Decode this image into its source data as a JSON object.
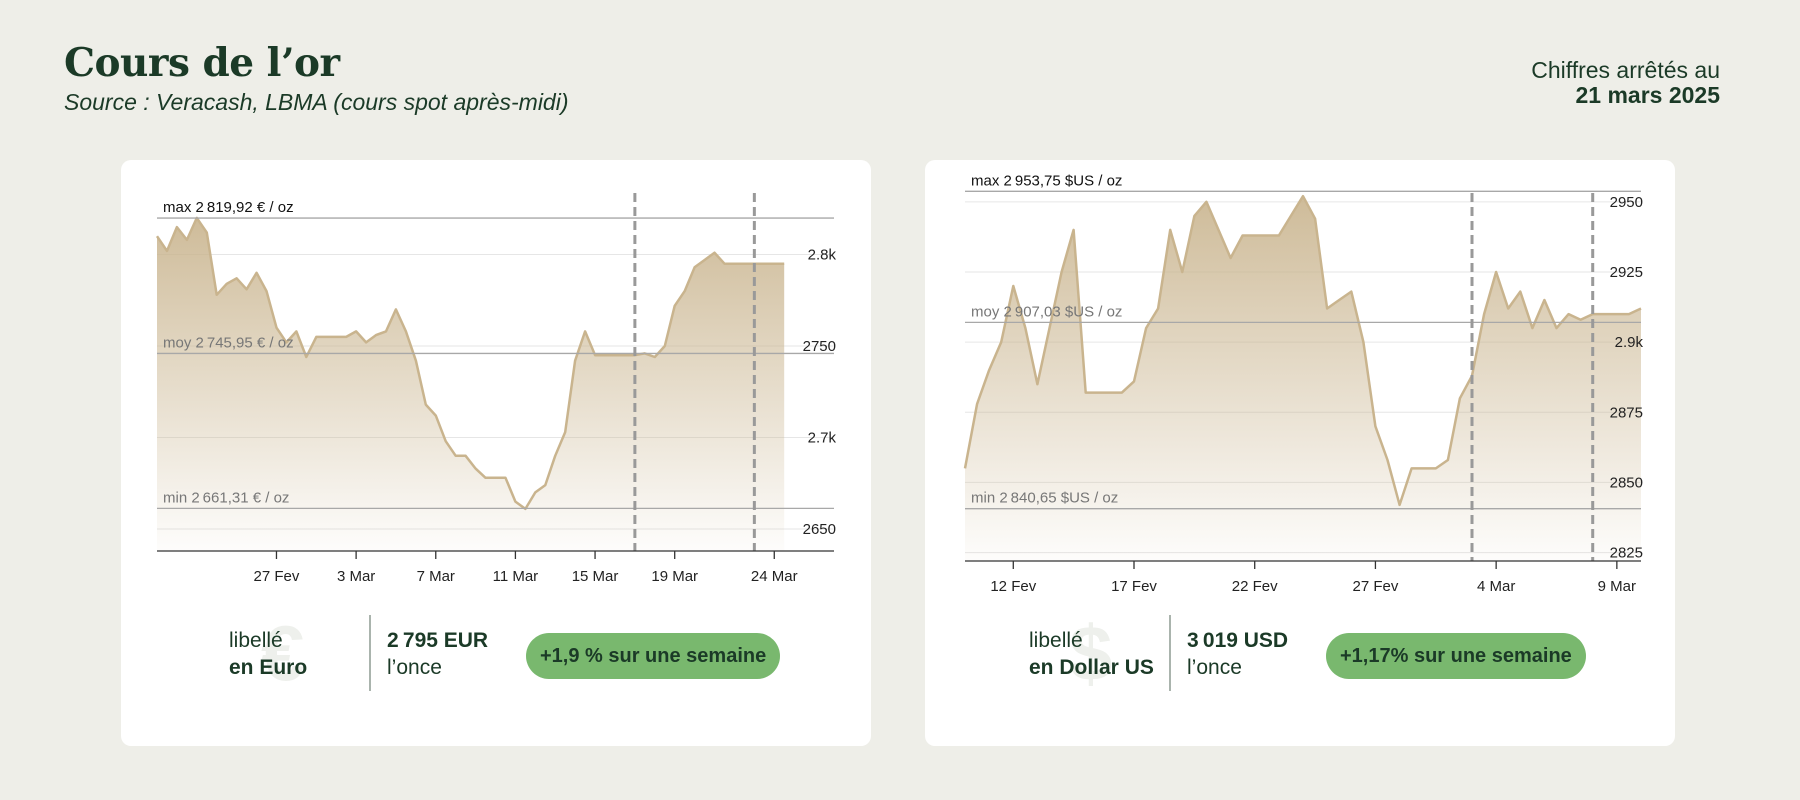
{
  "header": {
    "title": "Cours de l’or",
    "subtitle": "Source : Veracash, LBMA (cours spot après-midi)",
    "date_label": "Chiffres arrêtés au",
    "date_value": "21 mars 2025"
  },
  "colors": {
    "accent_gold": "#c9b48e",
    "badge_green": "#79b86e",
    "text_dark_green": "#1b3a27",
    "background": "#eeeee8"
  },
  "chart_data": [
    {
      "type": "area",
      "currency": "EUR",
      "x_start": "2025-02-21",
      "x_end": "2025-03-27",
      "x_ticks": [
        "27 Fev",
        "3 Mar",
        "7 Mar",
        "11 Mar",
        "15 Mar",
        "19 Mar",
        "24 Mar"
      ],
      "y_ticks": [
        2650,
        2700,
        2750,
        2800
      ],
      "y_tick_labels": [
        "2650",
        "2.7k",
        "2750",
        "2.8k"
      ],
      "ylim": [
        2638,
        2838
      ],
      "grid": true,
      "references": [
        {
          "kind": "max",
          "value": 2819.92,
          "label": "max 2 819,92 € / oz"
        },
        {
          "kind": "moy",
          "value": 2745.95,
          "label": "moy 2 745,95 € / oz"
        },
        {
          "kind": "min",
          "value": 2661.31,
          "label": "min 2 661,31 € / oz"
        }
      ],
      "week_markers": [
        "2025-03-17",
        "2025-03-23"
      ],
      "series": [
        {
          "points": [
            [
              "2025-02-21",
              2810
            ],
            [
              "2025-02-21T12",
              2802
            ],
            [
              "2025-02-22",
              2815
            ],
            [
              "2025-02-22T12",
              2808
            ],
            [
              "2025-02-23",
              2820
            ],
            [
              "2025-02-23T12",
              2812
            ],
            [
              "2025-02-24",
              2778
            ],
            [
              "2025-02-24T12",
              2784
            ],
            [
              "2025-02-25",
              2787
            ],
            [
              "2025-02-25T12",
              2781
            ],
            [
              "2025-02-26",
              2790
            ],
            [
              "2025-02-26T12",
              2780
            ],
            [
              "2025-02-27",
              2760
            ],
            [
              "2025-02-27T12",
              2752
            ],
            [
              "2025-02-28",
              2758
            ],
            [
              "2025-02-28T12",
              2744
            ],
            [
              "2025-03-01",
              2755
            ],
            [
              "2025-03-01T12",
              2755
            ],
            [
              "2025-03-02",
              2755
            ],
            [
              "2025-03-02T12",
              2755
            ],
            [
              "2025-03-03",
              2758
            ],
            [
              "2025-03-03T12",
              2752
            ],
            [
              "2025-03-04",
              2756
            ],
            [
              "2025-03-04T12",
              2758
            ],
            [
              "2025-03-05",
              2770
            ],
            [
              "2025-03-05T12",
              2758
            ],
            [
              "2025-03-06",
              2742
            ],
            [
              "2025-03-06T12",
              2718
            ],
            [
              "2025-03-07",
              2712
            ],
            [
              "2025-03-07T12",
              2698
            ],
            [
              "2025-03-08",
              2690
            ],
            [
              "2025-03-08T12",
              2690
            ],
            [
              "2025-03-09",
              2683
            ],
            [
              "2025-03-09T12",
              2678
            ],
            [
              "2025-03-10",
              2678
            ],
            [
              "2025-03-10T12",
              2678
            ],
            [
              "2025-03-11",
              2665
            ],
            [
              "2025-03-11T12",
              2661
            ],
            [
              "2025-03-12",
              2670
            ],
            [
              "2025-03-12T12",
              2674
            ],
            [
              "2025-03-13",
              2690
            ],
            [
              "2025-03-13T12",
              2703
            ],
            [
              "2025-03-14",
              2742
            ],
            [
              "2025-03-14T12",
              2758
            ],
            [
              "2025-03-15",
              2745
            ],
            [
              "2025-03-15T12",
              2745
            ],
            [
              "2025-03-16",
              2745
            ],
            [
              "2025-03-16T12",
              2745
            ],
            [
              "2025-03-17",
              2745
            ],
            [
              "2025-03-17T12",
              2746
            ],
            [
              "2025-03-18",
              2744
            ],
            [
              "2025-03-18T12",
              2750
            ],
            [
              "2025-03-19",
              2772
            ],
            [
              "2025-03-19T12",
              2780
            ],
            [
              "2025-03-20",
              2793
            ],
            [
              "2025-03-20T12",
              2797
            ],
            [
              "2025-03-21",
              2801
            ],
            [
              "2025-03-21T12",
              2795
            ],
            [
              "2025-03-22",
              2795
            ],
            [
              "2025-03-22T12",
              2795
            ],
            [
              "2025-03-23",
              2795
            ],
            [
              "2025-03-23T12",
              2795
            ],
            [
              "2025-03-24",
              2795
            ],
            [
              "2025-03-24T12",
              2795
            ]
          ]
        }
      ]
    },
    {
      "type": "area",
      "currency": "USD",
      "x_start": "2025-02-10",
      "x_end": "2025-03-10",
      "x_ticks": [
        "12 Fev",
        "17 Fev",
        "22 Fev",
        "27 Fev",
        "4 Mar",
        "9 Mar"
      ],
      "y_ticks": [
        2825,
        2850,
        2875,
        2900,
        2925,
        2950
      ],
      "y_tick_labels": [
        "2825",
        "2850",
        "2875",
        "2.9k",
        "2925",
        "2950"
      ],
      "ylim": [
        2822,
        2956
      ],
      "grid": true,
      "references": [
        {
          "kind": "max",
          "value": 2953.75,
          "label": "max 2 953,75 $US / oz"
        },
        {
          "kind": "moy",
          "value": 2907.03,
          "label": "moy 2 907,03 $US / oz"
        },
        {
          "kind": "min",
          "value": 2840.65,
          "label": "min 2 840,65 $US / oz"
        }
      ],
      "week_markers": [
        "2025-03-03",
        "2025-03-08"
      ],
      "series": [
        {
          "points": [
            [
              "2025-02-10",
              2855
            ],
            [
              "2025-02-10T12",
              2878
            ],
            [
              "2025-02-11",
              2890
            ],
            [
              "2025-02-11T12",
              2900
            ],
            [
              "2025-02-12",
              2920
            ],
            [
              "2025-02-12T12",
              2905
            ],
            [
              "2025-02-13",
              2885
            ],
            [
              "2025-02-13T12",
              2905
            ],
            [
              "2025-02-14",
              2925
            ],
            [
              "2025-02-14T12",
              2940
            ],
            [
              "2025-02-15",
              2882
            ],
            [
              "2025-02-15T12",
              2882
            ],
            [
              "2025-02-16",
              2882
            ],
            [
              "2025-02-16T12",
              2882
            ],
            [
              "2025-02-17",
              2886
            ],
            [
              "2025-02-17T12",
              2905
            ],
            [
              "2025-02-18",
              2912
            ],
            [
              "2025-02-18T12",
              2940
            ],
            [
              "2025-02-19",
              2925
            ],
            [
              "2025-02-19T12",
              2945
            ],
            [
              "2025-02-20",
              2950
            ],
            [
              "2025-02-20T12",
              2940
            ],
            [
              "2025-02-21",
              2930
            ],
            [
              "2025-02-21T12",
              2938
            ],
            [
              "2025-02-22",
              2938
            ],
            [
              "2025-02-22T12",
              2938
            ],
            [
              "2025-02-23",
              2938
            ],
            [
              "2025-02-23T12",
              2945
            ],
            [
              "2025-02-24",
              2952
            ],
            [
              "2025-02-24T12",
              2944
            ],
            [
              "2025-02-25",
              2912
            ],
            [
              "2025-02-25T12",
              2915
            ],
            [
              "2025-02-26",
              2918
            ],
            [
              "2025-02-26T12",
              2900
            ],
            [
              "2025-02-27",
              2870
            ],
            [
              "2025-02-27T12",
              2858
            ],
            [
              "2025-02-28",
              2842
            ],
            [
              "2025-02-28T12",
              2855
            ],
            [
              "2025-03-01",
              2855
            ],
            [
              "2025-03-01T12",
              2855
            ],
            [
              "2025-03-02",
              2858
            ],
            [
              "2025-03-02T12",
              2880
            ],
            [
              "2025-03-03",
              2888
            ],
            [
              "2025-03-03T12",
              2910
            ],
            [
              "2025-03-04",
              2925
            ],
            [
              "2025-03-04T12",
              2912
            ],
            [
              "2025-03-05",
              2918
            ],
            [
              "2025-03-05T12",
              2905
            ],
            [
              "2025-03-06",
              2915
            ],
            [
              "2025-03-06T12",
              2905
            ],
            [
              "2025-03-07",
              2910
            ],
            [
              "2025-03-07T12",
              2908
            ],
            [
              "2025-03-08",
              2910
            ],
            [
              "2025-03-08T12",
              2910
            ],
            [
              "2025-03-09",
              2910
            ],
            [
              "2025-03-09T12",
              2910
            ],
            [
              "2025-03-10",
              2912
            ]
          ]
        }
      ]
    }
  ],
  "cards": [
    {
      "currency_symbol": "€",
      "label_line1": "libellé",
      "label_line2": "en Euro",
      "price": "2 795 EUR",
      "price_unit": "l’once",
      "change_badge": "+1,9 % sur une semaine"
    },
    {
      "currency_symbol": "$",
      "label_line1": "libellé",
      "label_line2": "en Dollar US",
      "price": "3 019 USD",
      "price_unit": "l’once",
      "change_badge": "+1,17% sur une semaine"
    }
  ]
}
